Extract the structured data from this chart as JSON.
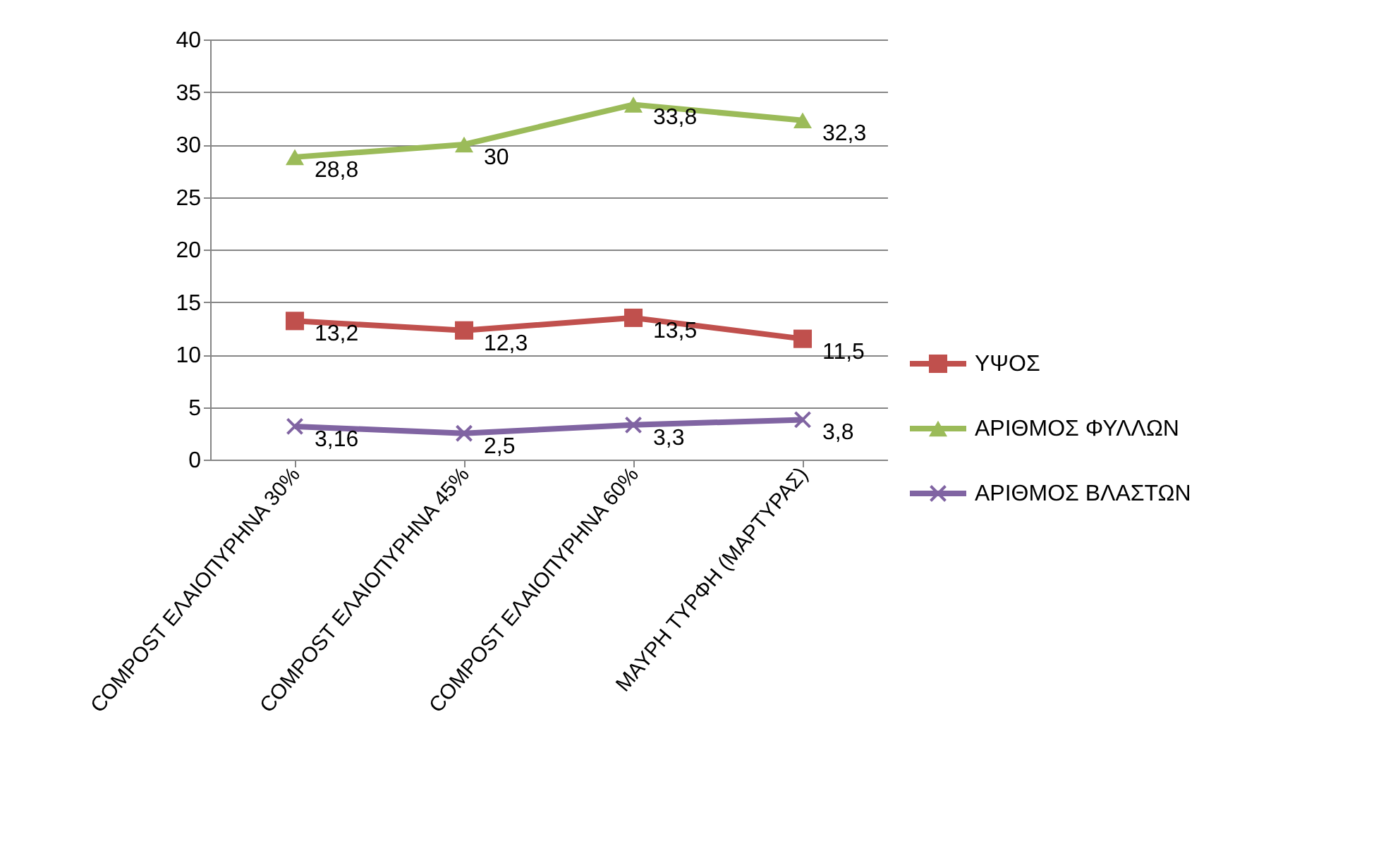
{
  "chart_data": {
    "type": "line",
    "categories": [
      "COMPOST ΕΛΑΙΟΠΥΡΗΝΑ 30%",
      "COMPOST ΕΛΑΙΟΠΥΡΗΝΑ 45%",
      "COMPOST ΕΛΑΙΟΠΥΡΗΝΑ 60%",
      "ΜΑΥΡΗ ΤΥΡΦΗ (ΜΑΡΤΥΡΑΣ)"
    ],
    "series": [
      {
        "name": "ΥΨΟΣ",
        "color": "#c0504d",
        "marker": "square",
        "values": [
          13.2,
          12.3,
          13.5,
          11.5
        ],
        "value_labels": [
          "13,2",
          "12,3",
          "13,5",
          "11,5"
        ]
      },
      {
        "name": "ΑΡΙΘΜΟΣ ΦΥΛΛΩΝ",
        "color": "#9bbb59",
        "marker": "triangle",
        "values": [
          28.8,
          30,
          33.8,
          32.3
        ],
        "value_labels": [
          "28,8",
          "30",
          "33,8",
          "32,3"
        ]
      },
      {
        "name": "ΑΡΙΘΜΟΣ ΒΛΑΣΤΩΝ",
        "color": "#8064a2",
        "marker": "cross",
        "values": [
          3.16,
          2.5,
          3.3,
          3.8
        ],
        "value_labels": [
          "3,16",
          "2,5",
          "3,3",
          "3,8"
        ]
      }
    ],
    "ylim": [
      0,
      40
    ],
    "yticks": [
      0,
      5,
      10,
      15,
      20,
      25,
      30,
      35,
      40
    ],
    "grid": "y",
    "legend": "right",
    "line_style": "solid"
  }
}
